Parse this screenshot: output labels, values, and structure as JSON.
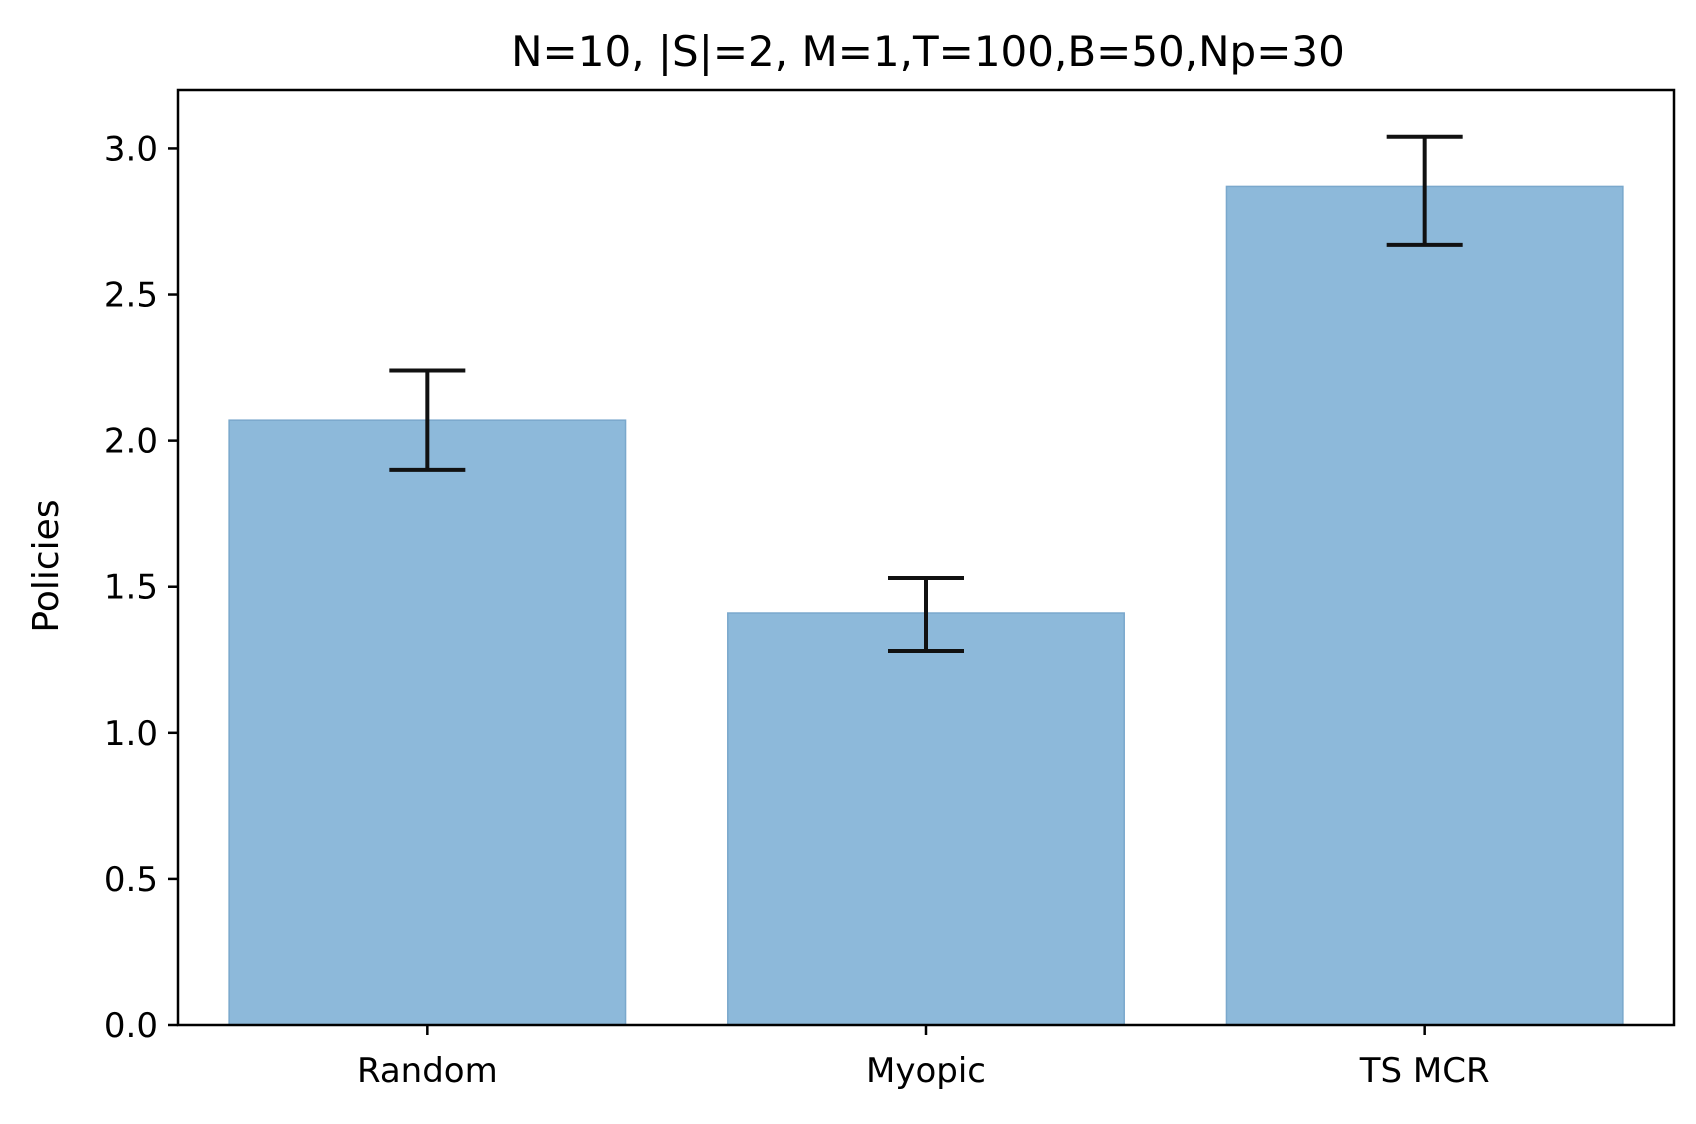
{
  "chart_data": {
    "type": "bar",
    "title": "N=10, |S|=2, M=1,T=100,B=50,Np=30",
    "xlabel": "",
    "ylabel": "Policies",
    "categories": [
      "Random",
      "Myopic",
      "TS MCR"
    ],
    "values": [
      2.07,
      1.41,
      2.87
    ],
    "error_low": [
      1.9,
      1.28,
      2.67
    ],
    "error_high": [
      2.24,
      1.53,
      3.04
    ],
    "ylim": [
      0,
      3.2
    ],
    "yticks": [
      0.0,
      0.5,
      1.0,
      1.5,
      2.0,
      2.5,
      3.0
    ],
    "ytick_labels": [
      "0.0",
      "0.5",
      "1.0",
      "1.5",
      "2.0",
      "2.5",
      "3.0"
    ],
    "grid": false,
    "legend": "none",
    "colors": {
      "bar": "#8db9da",
      "bar_edge": "#7aa8cc",
      "errorbar": "#111111",
      "axes": "#000000"
    }
  }
}
